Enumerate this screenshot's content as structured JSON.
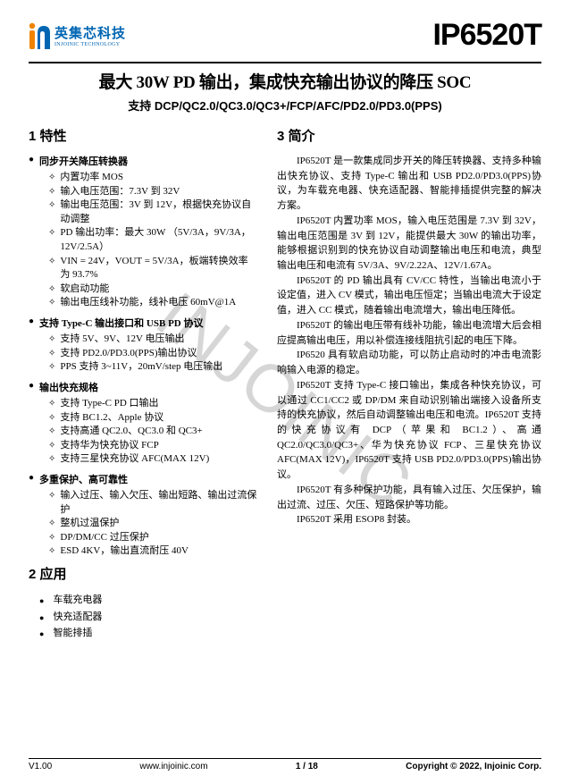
{
  "header": {
    "logo_cn": "英集芯科技",
    "logo_en": "INJOINIC TECHNOLOGY",
    "part_number": "IP6520T",
    "logo_colors": {
      "orange": "#f08300",
      "blue": "#0066b3"
    }
  },
  "title": {
    "main": "最大 30W PD 输出，集成快充输出协议的降压 SOC",
    "sub": "支持 DCP/QC2.0/QC3.0/QC3+/FCP/AFC/PD2.0/PD3.0(PPS)"
  },
  "sections": {
    "features_heading": "1   特性",
    "application_heading": "2   应用",
    "intro_heading": "3   简介"
  },
  "features": [
    {
      "head": "同步开关降压转换器",
      "items": [
        "内置功率 MOS",
        "输入电压范围：7.3V 到 32V",
        "输出电压范围：3V 到 12V，根据快充协议自动调整",
        "PD 输出功率：最大 30W （5V/3A，9V/3A，12V/2.5A）",
        "VIN = 24V，VOUT = 5V/3A，板端转换效率为 93.7%",
        "软启动功能",
        "输出电压线补功能，线补电压 60mV@1A"
      ]
    },
    {
      "head": "支持 Type-C 输出接口和 USB PD 协议",
      "items": [
        "支持 5V、9V、12V 电压输出",
        "支持 PD2.0/PD3.0(PPS)输出协议",
        "PPS 支持 3~11V，20mV/step 电压输出"
      ]
    },
    {
      "head": "输出快充规格",
      "items": [
        "支持 Type-C PD 口输出",
        "支持 BC1.2、Apple 协议",
        "支持高通 QC2.0、QC3.0 和 QC3+",
        "支持华为快充协议 FCP",
        "支持三星快充协议 AFC(MAX 12V)"
      ]
    },
    {
      "head": "多重保护、高可靠性",
      "items": [
        "输入过压、输入欠压、输出短路、输出过流保护",
        "整机过温保护",
        "DP/DM/CC 过压保护",
        "ESD 4KV，输出直流耐压 40V"
      ]
    }
  ],
  "applications": [
    "车载充电器",
    "快充适配器",
    "智能排插"
  ],
  "intro": [
    "IP6520T 是一款集成同步开关的降压转换器、支持多种输出快充协议、支持 Type-C 输出和 USB PD2.0/PD3.0(PPS)协议，为车载充电器、快充适配器、智能排插提供完整的解决方案。",
    "IP6520T 内置功率 MOS，输入电压范围是 7.3V 到 32V，输出电压范围是 3V 到 12V，能提供最大 30W 的输出功率，能够根据识别到的快充协议自动调整输出电压和电流，典型输出电压和电流有 5V/3A、9V/2.22A、12V/1.67A。",
    "IP6520T 的 PD 输出具有 CV/CC 特性，当输出电流小于设定值，进入 CV 模式，输出电压恒定；当输出电流大于设定值，进入 CC 模式，随着输出电流增大，输出电压降低。",
    "IP6520T 的输出电压带有线补功能，输出电流增大后会相应提高输出电压，用以补偿连接线阻抗引起的电压下降。",
    "IP6520 具有软启动功能，可以防止启动时的冲击电流影响输入电源的稳定。",
    "IP6520T 支持 Type-C 接口输出，集成各种快充协议，可以通过 CC1/CC2 或 DP/DM 来自动识别输出端接入设备所支持的快充协议，然后自动调整输出电压和电流。IP6520T 支持的快充协议有 DCP（苹果和 BC1.2）、高通 QC2.0/QC3.0/QC3+、华为快充协议 FCP、三星快充协议 AFC(MAX 12V)，IP6520T 支持 USB PD2.0/PD3.0(PPS)输出协议。",
    "IP6520T 有多种保护功能，具有输入过压、欠压保护，输出过流、过压、欠压、短路保护等功能。",
    "IP6520T 采用 ESOP8 封装。"
  ],
  "footer": {
    "version": "V1.00",
    "url": "www.injoinic.com",
    "page_current": "1",
    "page_total": "18",
    "copyright": "Copyright © 2022, Injoinic Corp."
  },
  "watermark": "INJOINIC"
}
